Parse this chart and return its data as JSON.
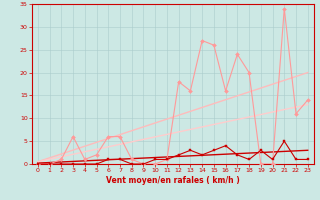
{
  "xlabel": "Vent moyen/en rafales ( km/h )",
  "xlim": [
    -0.5,
    23.5
  ],
  "ylim": [
    0,
    35
  ],
  "yticks": [
    0,
    5,
    10,
    15,
    20,
    25,
    30,
    35
  ],
  "xticks": [
    0,
    1,
    2,
    3,
    4,
    5,
    6,
    7,
    8,
    9,
    10,
    11,
    12,
    13,
    14,
    15,
    16,
    17,
    18,
    19,
    20,
    21,
    22,
    23
  ],
  "background_color": "#cce8e4",
  "grid_color": "#aacccc",
  "line_light": {
    "x": [
      0,
      1,
      2,
      3,
      4,
      5,
      6,
      7,
      8,
      9,
      10,
      11,
      12,
      13,
      14,
      15,
      16,
      17,
      18,
      19,
      20,
      21,
      22,
      23
    ],
    "y": [
      0,
      0,
      1,
      6,
      1,
      2,
      6,
      6,
      1,
      0,
      0,
      1,
      18,
      16,
      27,
      26,
      16,
      24,
      20,
      0,
      0,
      34,
      11,
      14
    ],
    "color": "#ff9999",
    "lw": 0.8,
    "marker": "D",
    "ms": 2.0
  },
  "line_light_trend_upper": {
    "x": [
      0,
      23
    ],
    "y": [
      0.5,
      20
    ],
    "color": "#ffbbbb",
    "lw": 1.0
  },
  "line_light_trend_lower": {
    "x": [
      0,
      23
    ],
    "y": [
      0.5,
      13
    ],
    "color": "#ffcccc",
    "lw": 1.0
  },
  "line_dark": {
    "x": [
      0,
      1,
      2,
      3,
      4,
      5,
      6,
      7,
      8,
      9,
      10,
      11,
      12,
      13,
      14,
      15,
      16,
      17,
      18,
      19,
      20,
      21,
      22,
      23
    ],
    "y": [
      0,
      0,
      0,
      0,
      0,
      0,
      1,
      1,
      0,
      0,
      1,
      1,
      2,
      3,
      2,
      3,
      4,
      2,
      1,
      3,
      1,
      5,
      1,
      1
    ],
    "color": "#cc0000",
    "lw": 0.8,
    "marker": "s",
    "ms": 2.0
  },
  "line_dark_trend": {
    "x": [
      0,
      23
    ],
    "y": [
      0.2,
      3
    ],
    "color": "#cc0000",
    "lw": 1.0
  },
  "xlabel_fontsize": 5.5,
  "tick_fontsize": 4.5,
  "label_color": "#cc0000"
}
